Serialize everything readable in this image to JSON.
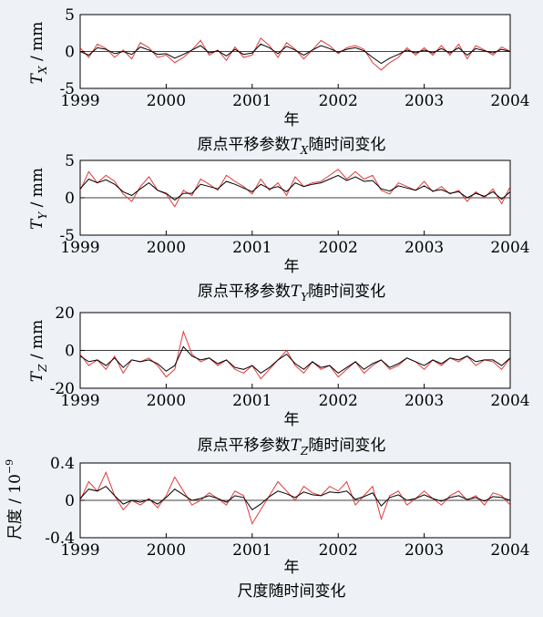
{
  "figure": {
    "background": "#eef2f6",
    "raw_color": "#e0393a",
    "smooth_color": "#000000",
    "zero_line_color": "#000000"
  },
  "panels": [
    {
      "id": "tx",
      "ylabel_symbol": "T",
      "ylabel_sub": "X",
      "ylabel_unit": " / mm",
      "xlabel": "年",
      "caption_prefix": "原点平移参数",
      "caption_symbol": "T",
      "caption_sub": "X",
      "caption_suffix": "随时间变化"
    },
    {
      "id": "ty",
      "ylabel_symbol": "T",
      "ylabel_sub": "Y",
      "ylabel_unit": " / mm",
      "xlabel": "年",
      "caption_prefix": "原点平移参数",
      "caption_symbol": "T",
      "caption_sub": "Y",
      "caption_suffix": "随时间变化"
    },
    {
      "id": "tz",
      "ylabel_symbol": "T",
      "ylabel_sub": "Z",
      "ylabel_unit": " / mm",
      "xlabel": "年",
      "caption_prefix": "原点平移参数",
      "caption_symbol": "T",
      "caption_sub": "Z",
      "caption_suffix": "随时间变化"
    },
    {
      "id": "scale",
      "ylabel_text": "尺度 / 10",
      "ylabel_sup": "−9",
      "xlabel": "年",
      "caption_text": "尺度随时间变化"
    }
  ],
  "chart_data": [
    {
      "type": "line",
      "xlim": [
        1999,
        2004
      ],
      "ylim": [
        -5,
        5
      ],
      "yticks": [
        "-5",
        "0",
        "5"
      ],
      "xticks": [
        "1999",
        "2000",
        "2001",
        "2002",
        "2003",
        "2004"
      ],
      "grid": false,
      "series": [
        {
          "x": [
            1999.0,
            1999.1,
            1999.2,
            1999.3,
            1999.4,
            1999.5,
            1999.6,
            1999.7,
            1999.8,
            1999.9,
            2000.0,
            2000.1,
            2000.2,
            2000.3,
            2000.4,
            2000.5,
            2000.6,
            2000.7,
            2000.8,
            2000.9,
            2001.0,
            2001.1,
            2001.2,
            2001.3,
            2001.4,
            2001.5,
            2001.6,
            2001.7,
            2001.8,
            2001.9,
            2002.0,
            2002.1,
            2002.2,
            2002.3,
            2002.4,
            2002.5,
            2002.6,
            2002.7,
            2002.8,
            2002.9,
            2003.0,
            2003.1,
            2003.2,
            2003.3,
            2003.4,
            2003.5,
            2003.6,
            2003.7,
            2003.8,
            2003.9,
            2004.0
          ],
          "y": [
            0.5,
            -0.8,
            1.0,
            0.4,
            -0.8,
            0.2,
            -1.0,
            1.2,
            0.5,
            -0.8,
            -0.5,
            -1.5,
            -0.8,
            0.2,
            1.5,
            -0.5,
            0.2,
            -1.2,
            0.6,
            -0.8,
            -0.5,
            1.8,
            0.8,
            -0.8,
            1.2,
            0.3,
            -1.0,
            0.2,
            1.5,
            0.8,
            -0.3,
            0.5,
            0.8,
            0.3,
            -1.5,
            -2.5,
            -1.5,
            -0.8,
            0.5,
            -0.5,
            0.5,
            -0.5,
            0.8,
            -0.5,
            1.0,
            -1.0,
            0.8,
            0.2,
            -0.5,
            0.6,
            0.0
          ]
        },
        {
          "x": [
            1999.0,
            1999.1,
            1999.2,
            1999.3,
            1999.4,
            1999.5,
            1999.6,
            1999.7,
            1999.8,
            1999.9,
            2000.0,
            2000.1,
            2000.2,
            2000.3,
            2000.4,
            2000.5,
            2000.6,
            2000.7,
            2000.8,
            2000.9,
            2001.0,
            2001.1,
            2001.2,
            2001.3,
            2001.4,
            2001.5,
            2001.6,
            2001.7,
            2001.8,
            2001.9,
            2002.0,
            2002.1,
            2002.2,
            2002.3,
            2002.4,
            2002.5,
            2002.6,
            2002.7,
            2002.8,
            2002.9,
            2003.0,
            2003.1,
            2003.2,
            2003.3,
            2003.4,
            2003.5,
            2003.6,
            2003.7,
            2003.8,
            2003.9,
            2004.0
          ],
          "y": [
            0.0,
            -0.5,
            0.5,
            0.3,
            -0.3,
            0.0,
            -0.4,
            0.6,
            0.2,
            -0.4,
            -0.3,
            -0.9,
            -0.4,
            0.2,
            0.8,
            -0.2,
            0.1,
            -0.6,
            0.3,
            -0.4,
            -0.2,
            1.0,
            0.5,
            -0.3,
            0.7,
            0.2,
            -0.5,
            0.2,
            0.8,
            0.4,
            -0.1,
            0.3,
            0.5,
            0.1,
            -0.8,
            -1.6,
            -0.9,
            -0.4,
            0.2,
            -0.2,
            0.2,
            -0.2,
            0.4,
            -0.2,
            0.5,
            -0.5,
            0.4,
            0.1,
            -0.2,
            0.3,
            0.0
          ]
        }
      ]
    },
    {
      "type": "line",
      "xlim": [
        1999,
        2004
      ],
      "ylim": [
        -5,
        5
      ],
      "yticks": [
        "-5",
        "0",
        "5"
      ],
      "xticks": [
        "1999",
        "2000",
        "2001",
        "2002",
        "2003",
        "2004"
      ],
      "grid": false,
      "series": [
        {
          "x": [
            1999.0,
            1999.1,
            1999.2,
            1999.3,
            1999.4,
            1999.5,
            1999.6,
            1999.7,
            1999.8,
            1999.9,
            2000.0,
            2000.1,
            2000.2,
            2000.3,
            2000.4,
            2000.5,
            2000.6,
            2000.7,
            2000.8,
            2000.9,
            2001.0,
            2001.1,
            2001.2,
            2001.3,
            2001.4,
            2001.5,
            2001.6,
            2001.7,
            2001.8,
            2001.9,
            2002.0,
            2002.1,
            2002.2,
            2002.3,
            2002.4,
            2002.5,
            2002.6,
            2002.7,
            2002.8,
            2002.9,
            2003.0,
            2003.1,
            2003.2,
            2003.3,
            2003.4,
            2003.5,
            2003.6,
            2003.7,
            2003.8,
            2003.9,
            2004.0
          ],
          "y": [
            1.0,
            3.5,
            2.0,
            3.0,
            2.2,
            0.5,
            -0.5,
            1.5,
            2.8,
            1.0,
            0.5,
            -1.2,
            1.0,
            0.3,
            2.5,
            1.8,
            1.0,
            3.0,
            2.2,
            1.5,
            0.5,
            2.5,
            1.0,
            2.0,
            0.3,
            2.8,
            1.5,
            2.0,
            2.2,
            3.0,
            3.8,
            2.5,
            3.5,
            2.5,
            3.0,
            1.0,
            0.5,
            2.0,
            1.5,
            1.0,
            2.2,
            0.8,
            1.5,
            0.5,
            1.0,
            -0.5,
            0.8,
            0.0,
            1.2,
            -0.8,
            1.5
          ]
        },
        {
          "x": [
            1999.0,
            1999.1,
            1999.2,
            1999.3,
            1999.4,
            1999.5,
            1999.6,
            1999.7,
            1999.8,
            1999.9,
            2000.0,
            2000.1,
            2000.2,
            2000.3,
            2000.4,
            2000.5,
            2000.6,
            2000.7,
            2000.8,
            2000.9,
            2001.0,
            2001.1,
            2001.2,
            2001.3,
            2001.4,
            2001.5,
            2001.6,
            2001.7,
            2001.8,
            2001.9,
            2002.0,
            2002.1,
            2002.2,
            2002.3,
            2002.4,
            2002.5,
            2002.6,
            2002.7,
            2002.8,
            2002.9,
            2003.0,
            2003.1,
            2003.2,
            2003.3,
            2003.4,
            2003.5,
            2003.6,
            2003.7,
            2003.8,
            2003.9,
            2004.0
          ],
          "y": [
            1.2,
            2.5,
            2.0,
            2.4,
            1.8,
            0.8,
            0.3,
            1.2,
            2.0,
            1.0,
            0.6,
            -0.3,
            0.6,
            0.6,
            1.8,
            1.5,
            1.2,
            2.2,
            1.8,
            1.3,
            0.8,
            1.8,
            1.2,
            1.5,
            0.8,
            2.0,
            1.5,
            1.8,
            2.0,
            2.5,
            3.0,
            2.3,
            2.8,
            2.2,
            2.3,
            1.2,
            0.9,
            1.6,
            1.3,
            1.0,
            1.6,
            0.9,
            1.1,
            0.6,
            0.8,
            0.0,
            0.6,
            0.2,
            0.8,
            -0.2,
            0.8
          ]
        }
      ]
    },
    {
      "type": "line",
      "xlim": [
        1999,
        2004
      ],
      "ylim": [
        -20,
        20
      ],
      "yticks": [
        "-20",
        "0",
        "20"
      ],
      "xticks": [
        "1999",
        "2000",
        "2001",
        "2002",
        "2003",
        "2004"
      ],
      "grid": false,
      "series": [
        {
          "x": [
            1999.0,
            1999.1,
            1999.2,
            1999.3,
            1999.4,
            1999.5,
            1999.6,
            1999.7,
            1999.8,
            1999.9,
            2000.0,
            2000.1,
            2000.2,
            2000.3,
            2000.4,
            2000.5,
            2000.6,
            2000.7,
            2000.8,
            2000.9,
            2001.0,
            2001.1,
            2001.2,
            2001.3,
            2001.4,
            2001.5,
            2001.6,
            2001.7,
            2001.8,
            2001.9,
            2002.0,
            2002.1,
            2002.2,
            2002.3,
            2002.4,
            2002.5,
            2002.6,
            2002.7,
            2002.8,
            2002.9,
            2003.0,
            2003.1,
            2003.2,
            2003.3,
            2003.4,
            2003.5,
            2003.6,
            2003.7,
            2003.8,
            2003.9,
            2004.0
          ],
          "y": [
            -2,
            -8,
            -5,
            -10,
            -3,
            -12,
            -5,
            -6,
            -4,
            -8,
            -14,
            -10,
            10,
            -2,
            -6,
            -4,
            -8,
            -5,
            -10,
            -12,
            -8,
            -15,
            -10,
            -5,
            0,
            -8,
            -12,
            -6,
            -10,
            -8,
            -14,
            -10,
            -6,
            -12,
            -8,
            -5,
            -10,
            -8,
            -4,
            -6,
            -10,
            -5,
            -8,
            -4,
            -6,
            -3,
            -8,
            -5,
            -6,
            -10,
            -4
          ]
        },
        {
          "x": [
            1999.0,
            1999.1,
            1999.2,
            1999.3,
            1999.4,
            1999.5,
            1999.6,
            1999.7,
            1999.8,
            1999.9,
            2000.0,
            2000.1,
            2000.2,
            2000.3,
            2000.4,
            2000.5,
            2000.6,
            2000.7,
            2000.8,
            2000.9,
            2001.0,
            2001.1,
            2001.2,
            2001.3,
            2001.4,
            2001.5,
            2001.6,
            2001.7,
            2001.8,
            2001.9,
            2002.0,
            2002.1,
            2002.2,
            2002.3,
            2002.4,
            2002.5,
            2002.6,
            2002.7,
            2002.8,
            2002.9,
            2003.0,
            2003.1,
            2003.2,
            2003.3,
            2003.4,
            2003.5,
            2003.6,
            2003.7,
            2003.8,
            2003.9,
            2004.0
          ],
          "y": [
            -3,
            -6,
            -5,
            -8,
            -4,
            -9,
            -5,
            -6,
            -5,
            -7,
            -11,
            -8,
            2,
            -3,
            -5,
            -4,
            -7,
            -5,
            -9,
            -10,
            -8,
            -12,
            -9,
            -5,
            -2,
            -7,
            -10,
            -6,
            -9,
            -8,
            -12,
            -9,
            -6,
            -10,
            -7,
            -5,
            -9,
            -7,
            -4,
            -6,
            -8,
            -5,
            -7,
            -4,
            -5,
            -3,
            -6,
            -5,
            -5,
            -8,
            -4
          ]
        }
      ]
    },
    {
      "type": "line",
      "xlim": [
        1999,
        2004
      ],
      "ylim": [
        -0.4,
        0.4
      ],
      "yticks": [
        "-0.4",
        "0",
        "0.4"
      ],
      "xticks": [
        "1999",
        "2000",
        "2001",
        "2002",
        "2003",
        "2004"
      ],
      "grid": false,
      "series": [
        {
          "x": [
            1999.0,
            1999.1,
            1999.2,
            1999.3,
            1999.4,
            1999.5,
            1999.6,
            1999.7,
            1999.8,
            1999.9,
            2000.0,
            2000.1,
            2000.2,
            2000.3,
            2000.4,
            2000.5,
            2000.6,
            2000.7,
            2000.8,
            2000.9,
            2001.0,
            2001.1,
            2001.2,
            2001.3,
            2001.4,
            2001.5,
            2001.6,
            2001.7,
            2001.8,
            2001.9,
            2002.0,
            2002.1,
            2002.2,
            2002.3,
            2002.4,
            2002.5,
            2002.6,
            2002.7,
            2002.8,
            2002.9,
            2003.0,
            2003.1,
            2003.2,
            2003.3,
            2003.4,
            2003.5,
            2003.6,
            2003.7,
            2003.8,
            2003.9,
            2004.0
          ],
          "y": [
            0.0,
            0.2,
            0.1,
            0.3,
            0.05,
            -0.1,
            0.0,
            -0.05,
            0.02,
            -0.08,
            0.05,
            0.25,
            0.1,
            -0.05,
            0.0,
            0.08,
            0.02,
            -0.05,
            0.1,
            0.05,
            -0.25,
            -0.1,
            0.05,
            0.2,
            0.1,
            0.0,
            0.15,
            0.08,
            0.05,
            0.15,
            0.1,
            0.2,
            -0.05,
            0.05,
            0.15,
            -0.2,
            0.05,
            0.1,
            -0.05,
            0.02,
            0.1,
            0.02,
            -0.05,
            0.05,
            0.1,
            0.0,
            0.05,
            -0.05,
            0.08,
            0.05,
            -0.05
          ]
        },
        {
          "x": [
            1999.0,
            1999.1,
            1999.2,
            1999.3,
            1999.4,
            1999.5,
            1999.6,
            1999.7,
            1999.8,
            1999.9,
            2000.0,
            2000.1,
            2000.2,
            2000.3,
            2000.4,
            2000.5,
            2000.6,
            2000.7,
            2000.8,
            2000.9,
            2001.0,
            2001.1,
            2001.2,
            2001.3,
            2001.4,
            2001.5,
            2001.6,
            2001.7,
            2001.8,
            2001.9,
            2002.0,
            2002.1,
            2002.2,
            2002.3,
            2002.4,
            2002.5,
            2002.6,
            2002.7,
            2002.8,
            2002.9,
            2003.0,
            2003.1,
            2003.2,
            2003.3,
            2003.4,
            2003.5,
            2003.6,
            2003.7,
            2003.8,
            2003.9,
            2004.0
          ],
          "y": [
            0.02,
            0.12,
            0.1,
            0.15,
            0.05,
            -0.04,
            0.0,
            -0.02,
            0.01,
            -0.04,
            0.03,
            0.12,
            0.06,
            0.0,
            0.02,
            0.05,
            0.02,
            -0.02,
            0.05,
            0.03,
            -0.1,
            -0.04,
            0.04,
            0.1,
            0.07,
            0.03,
            0.09,
            0.06,
            0.05,
            0.09,
            0.08,
            0.1,
            0.01,
            0.04,
            0.08,
            -0.06,
            0.03,
            0.06,
            0.0,
            0.02,
            0.06,
            0.02,
            -0.01,
            0.03,
            0.05,
            0.01,
            0.03,
            -0.01,
            0.04,
            0.03,
            0.0
          ]
        }
      ]
    }
  ]
}
